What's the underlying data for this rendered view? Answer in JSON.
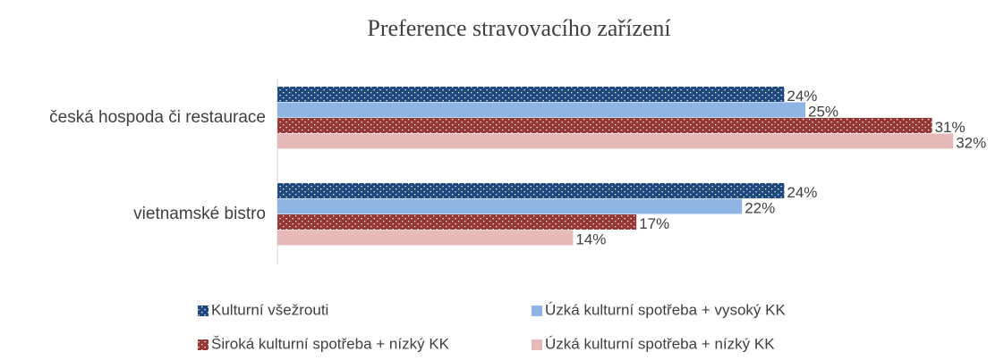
{
  "chart_data": {
    "type": "hbar",
    "title": "Preference stravovacího zařízení",
    "categories": [
      "česká hospoda či restaurace",
      "vietnamské bistro"
    ],
    "series": [
      {
        "name": "Kulturní všežrouti",
        "color": "#1f497d",
        "pattern": "dots",
        "values": [
          24,
          24
        ],
        "value_labels": [
          "24%",
          "24%"
        ]
      },
      {
        "name": "Úzká kulturní spotřeba + vysoký KK",
        "color": "#8eb4e3",
        "values": [
          25,
          22
        ],
        "value_labels": [
          "25%",
          "22%"
        ]
      },
      {
        "name": "Široká kulturní spotřeba + nízký KK",
        "color": "#953735",
        "pattern": "dots",
        "values": [
          31,
          17
        ],
        "value_labels": [
          "31%",
          "17%"
        ]
      },
      {
        "name": "Úzká kulturní spotřeba + nízký KK",
        "color": "#e6b9b8",
        "values": [
          32,
          14
        ],
        "value_labels": [
          "32%",
          "14%"
        ]
      }
    ],
    "legend": "bottom"
  }
}
